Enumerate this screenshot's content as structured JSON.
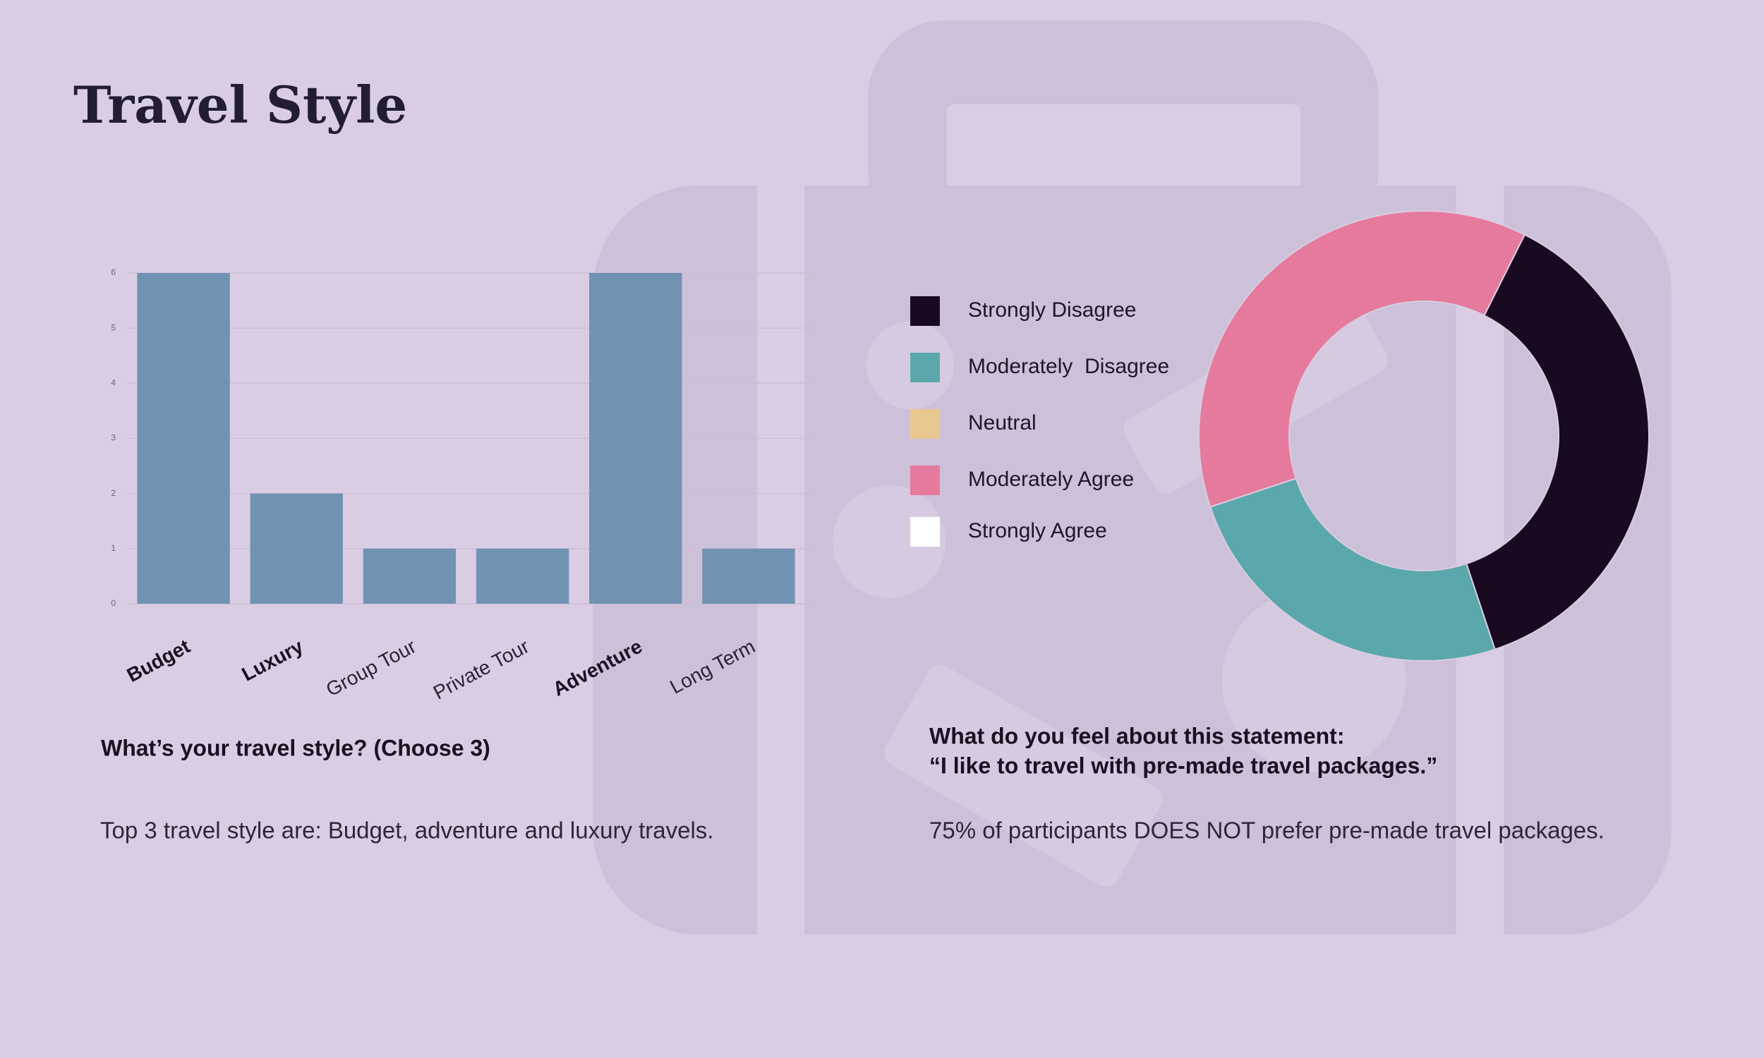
{
  "title": "Travel Style",
  "chart_data": [
    {
      "type": "bar",
      "categories": [
        "Budget",
        "Luxury",
        "Group Tour",
        "Private Tour",
        "Adventure",
        "Long Term"
      ],
      "values": [
        6,
        2,
        1,
        1,
        6,
        1
      ],
      "color": "#6a8eb0",
      "ylim": [
        0,
        6
      ],
      "yticks": [
        0,
        1,
        2,
        3,
        4,
        5,
        6
      ],
      "grid": true
    },
    {
      "type": "donut",
      "categories": [
        "Strongly Disagree",
        "Moderately  Disagree",
        "Neutral",
        "Moderately Agree",
        "Strongly Agree"
      ],
      "values": [
        37.5,
        25,
        0,
        37.5,
        0
      ],
      "colors": [
        "#1a0a20",
        "#5aa8ab",
        "#e8c88e",
        "#e57a9c",
        "#ffffff"
      ]
    }
  ],
  "left_text": {
    "question": "What’s your travel style? (Choose 3)",
    "summary": "Top 3 travel style are: Budget, adventure and luxury travels."
  },
  "right_text": {
    "question": [
      "What do you feel about this statement:",
      "“I like to travel with pre-made travel packages.”"
    ],
    "summary": "75% of participants DOES NOT prefer pre-made travel packages."
  }
}
